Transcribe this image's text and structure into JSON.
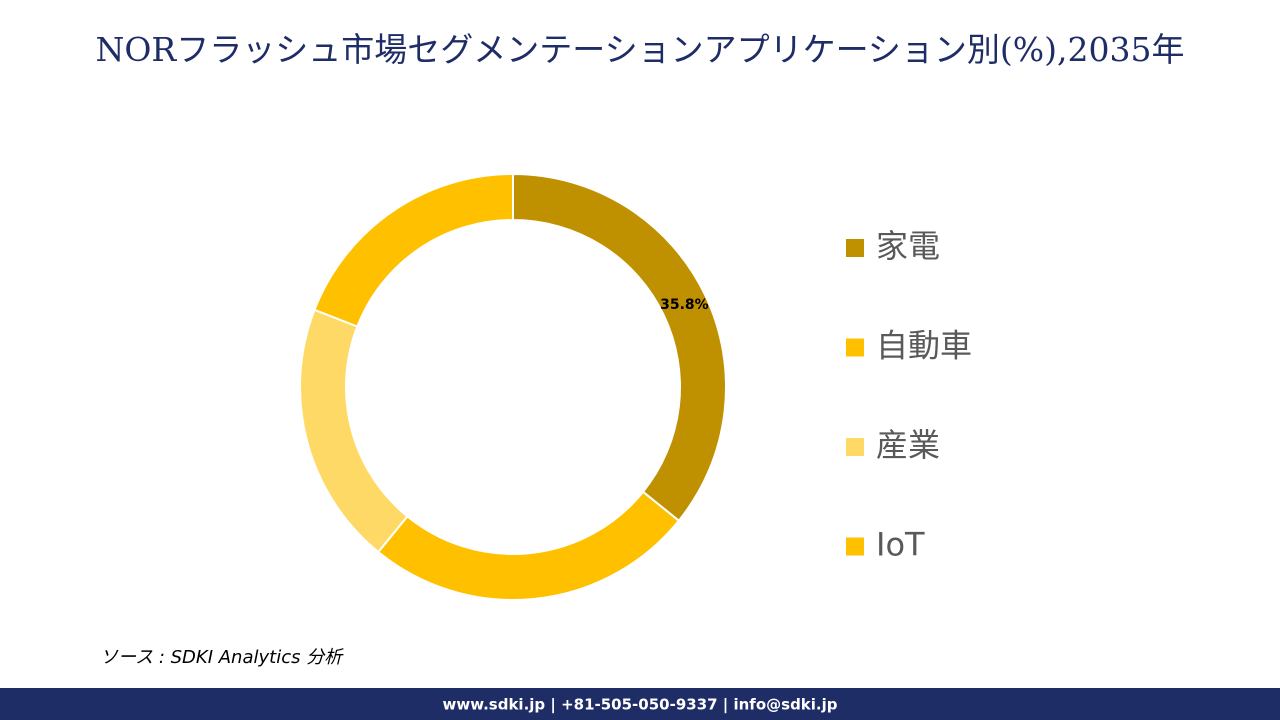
{
  "chart_data": {
    "type": "donut",
    "title": "NORフラッシュ市場セグメンテーションアプリケーション別(%),2035年",
    "categories": [
      "家電",
      "自動車",
      "産業",
      "IoT"
    ],
    "values": [
      35.8,
      25.1,
      20.0,
      19.1
    ],
    "value_labels": [
      "35.8%",
      null,
      null,
      null
    ],
    "colors": [
      "#bf9000",
      "#ffc000",
      "#ffd966",
      "#ffc000"
    ],
    "legend": "right"
  },
  "source": "ソース : SDKI Analytics 分析",
  "footer": "www.sdki.jp | +81-505-050-9337 | info@sdki.jp"
}
